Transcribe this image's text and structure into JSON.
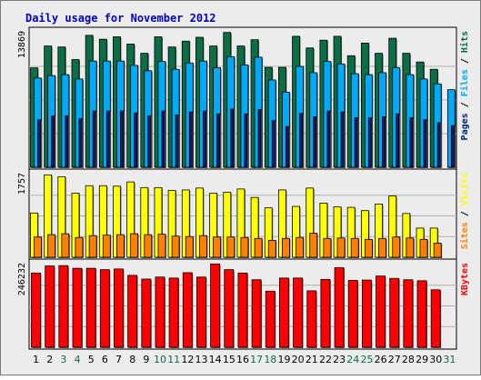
{
  "colors": {
    "background": "#ececec",
    "outer_background": "#ffffff",
    "border": "#000000",
    "grid": "#b0b0b0",
    "title": "#0000c0",
    "hits": "#0b6e44",
    "files": "#00aaf8",
    "pages": "#00207a",
    "visits": "#ffff00",
    "sites": "#ff8000",
    "kbytes": "#ff0000",
    "day_weekday": "#000000",
    "day_weekend": "#0b6e44",
    "slash": "#000000"
  },
  "chart_data": {
    "type": "bar",
    "title": "Daily usage for November 2012",
    "categories": [
      "1",
      "2",
      "3",
      "4",
      "5",
      "6",
      "7",
      "8",
      "9",
      "10",
      "11",
      "12",
      "13",
      "14",
      "15",
      "16",
      "17",
      "18",
      "19",
      "20",
      "21",
      "22",
      "23",
      "24",
      "25",
      "26",
      "27",
      "28",
      "29",
      "30",
      "31"
    ],
    "weekend_days": [
      "3",
      "4",
      "10",
      "11",
      "17",
      "18",
      "24",
      "25",
      "31"
    ],
    "panels": [
      {
        "id": "hits_files_pages",
        "max_label": "13869",
        "max_value": 13869,
        "legend": [
          {
            "key": "hits",
            "text": "Hits"
          },
          {
            "key": "files",
            "text": "Files"
          },
          {
            "key": "pages",
            "text": "Pages"
          }
        ],
        "series": [
          {
            "name": "Hits",
            "key": "hits",
            "values": [
              10250,
              12500,
              12400,
              11100,
              13600,
              13200,
              13450,
              12700,
              11750,
              13450,
              12400,
              13000,
              13400,
              12500,
              13900,
              12500,
              13150,
              10300,
              10300,
              13500,
              12300,
              13100,
              13500,
              11500,
              12800,
              11750,
              13300,
              11750,
              10850,
              10100,
              null
            ]
          },
          {
            "name": "Files",
            "key": "files",
            "values": [
              9200,
              9450,
              9550,
              9100,
              10950,
              10950,
              10950,
              10500,
              9950,
              10900,
              10100,
              10750,
              10950,
              10250,
              11400,
              10550,
              11350,
              9000,
              7750,
              10400,
              9750,
              10900,
              10650,
              9650,
              9550,
              9750,
              10250,
              9550,
              9100,
              8600,
              8000
            ]
          },
          {
            "name": "Pages",
            "key": "pages",
            "values": [
              4900,
              5300,
              5300,
              5000,
              5800,
              5800,
              5800,
              5600,
              5300,
              5800,
              5400,
              5700,
              5800,
              5500,
              6000,
              5500,
              5950,
              4800,
              4200,
              5550,
              5200,
              5800,
              5700,
              5100,
              5100,
              5200,
              5500,
              5100,
              4900,
              4600,
              4300
            ]
          }
        ]
      },
      {
        "id": "visits_sites",
        "max_label": "1757",
        "max_value": 1757,
        "legend": [
          {
            "key": "visits",
            "text": "Visits"
          },
          {
            "key": "sites",
            "text": "Sites"
          }
        ],
        "series": [
          {
            "name": "Visits",
            "key": "visits",
            "values": [
              940,
              1750,
              1710,
              1360,
              1520,
              1520,
              1510,
              1600,
              1480,
              1480,
              1420,
              1430,
              1470,
              1360,
              1380,
              1450,
              1270,
              1050,
              1430,
              1080,
              1470,
              1150,
              1070,
              1060,
              990,
              1130,
              1300,
              930,
              620,
              620,
              null
            ]
          },
          {
            "name": "Sites",
            "key": "sites",
            "values": [
              430,
              480,
              500,
              420,
              460,
              470,
              480,
              500,
              480,
              490,
              450,
              440,
              460,
              430,
              430,
              420,
              400,
              360,
              400,
              420,
              510,
              400,
              410,
              400,
              380,
              400,
              430,
              410,
              380,
              300,
              null
            ]
          }
        ]
      },
      {
        "id": "kbytes",
        "max_label": "246232",
        "max_value": 246232,
        "legend": [
          {
            "key": "kbytes",
            "text": "KBytes"
          }
        ],
        "series": [
          {
            "name": "KBytes",
            "key": "kbytes",
            "values": [
              221000,
              242000,
              243000,
              235000,
              235000,
              231000,
              233000,
              214000,
              203000,
              209000,
              206000,
              222000,
              209000,
              248000,
              231000,
              221000,
              201000,
              167000,
              206000,
              206000,
              168000,
              202000,
              237000,
              199000,
              200000,
              212000,
              205000,
              201000,
              198000,
              171000,
              null
            ]
          }
        ]
      }
    ]
  }
}
